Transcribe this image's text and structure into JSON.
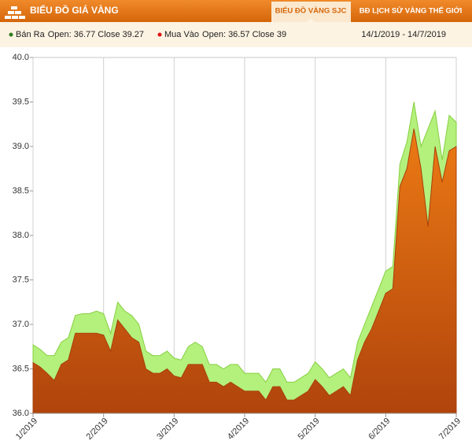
{
  "header": {
    "title": "BIỂU ĐỒ GIÁ VÀNG",
    "tabs": [
      "BIỂU ĐỒ VÀNG SJC",
      "BĐ LỊCH SỬ VÀNG THẾ GIỚI"
    ],
    "date_range": "14/1/2019 - 14/7/2019"
  },
  "chart_data": {
    "type": "area",
    "x": [
      1.0,
      1.1,
      1.2,
      1.3,
      1.4,
      1.5,
      1.6,
      1.7,
      1.8,
      1.9,
      2.0,
      2.1,
      2.2,
      2.3,
      2.4,
      2.5,
      2.6,
      2.7,
      2.8,
      2.9,
      3.0,
      3.1,
      3.2,
      3.3,
      3.4,
      3.5,
      3.6,
      3.7,
      3.8,
      3.9,
      4.0,
      4.1,
      4.2,
      4.3,
      4.4,
      4.5,
      4.6,
      4.7,
      4.8,
      4.9,
      5.0,
      5.1,
      5.2,
      5.3,
      5.4,
      5.5,
      5.6,
      5.7,
      5.8,
      5.9,
      6.0,
      6.1,
      6.2,
      6.3,
      6.4,
      6.5,
      6.6,
      6.7,
      6.8,
      6.9,
      7.0
    ],
    "series": [
      {
        "name": "Bán Ra",
        "summary": "Open: 36.77 Close 39.27",
        "color": "#b3f07c",
        "stroke": "#86d040",
        "dot": "#2e7d1e",
        "values": [
          36.77,
          36.72,
          36.65,
          36.65,
          36.8,
          36.85,
          37.1,
          37.12,
          37.12,
          37.15,
          37.12,
          36.9,
          37.25,
          37.15,
          37.1,
          37.0,
          36.7,
          36.65,
          36.65,
          36.7,
          36.62,
          36.6,
          36.75,
          36.8,
          36.75,
          36.55,
          36.55,
          36.5,
          36.55,
          36.55,
          36.45,
          36.45,
          36.45,
          36.35,
          36.5,
          36.5,
          36.35,
          36.35,
          36.4,
          36.45,
          36.58,
          36.5,
          36.4,
          36.45,
          36.5,
          36.4,
          36.8,
          37.0,
          37.2,
          37.4,
          37.6,
          37.65,
          38.8,
          39.05,
          39.5,
          39.0,
          39.2,
          39.4,
          38.85,
          39.35,
          39.27
        ]
      },
      {
        "name": "Mua Vào",
        "summary": "Open: 36.57 Close 39",
        "color": "#e06a10",
        "stroke": "#a8400c",
        "dot": "#e01010",
        "values": [
          36.57,
          36.52,
          36.45,
          36.37,
          36.55,
          36.6,
          36.9,
          36.9,
          36.9,
          36.9,
          36.88,
          36.7,
          37.05,
          36.95,
          36.85,
          36.8,
          36.5,
          36.45,
          36.45,
          36.5,
          36.42,
          36.4,
          36.55,
          36.55,
          36.55,
          36.35,
          36.35,
          36.3,
          36.35,
          36.3,
          36.25,
          36.25,
          36.25,
          36.15,
          36.3,
          36.3,
          36.15,
          36.15,
          36.2,
          36.25,
          36.38,
          36.3,
          36.2,
          36.25,
          36.3,
          36.2,
          36.6,
          36.8,
          36.95,
          37.15,
          37.35,
          37.4,
          38.55,
          38.75,
          39.2,
          38.75,
          38.1,
          39.0,
          38.6,
          38.95,
          39.0
        ]
      }
    ],
    "xlim": [
      1,
      7
    ],
    "xticks": [
      {
        "value": 1,
        "label": "1/2019"
      },
      {
        "value": 2,
        "label": "2/2019"
      },
      {
        "value": 3,
        "label": "3/2019"
      },
      {
        "value": 4,
        "label": "4/2019"
      },
      {
        "value": 5,
        "label": "5/2019"
      },
      {
        "value": 6,
        "label": "6/2019"
      },
      {
        "value": 7,
        "label": "7/2019"
      }
    ],
    "ylim": [
      36,
      40
    ],
    "yticks": [
      {
        "value": 36,
        "label": "36.0"
      },
      {
        "value": 36.5,
        "label": "36.5"
      },
      {
        "value": 37,
        "label": "37.0"
      },
      {
        "value": 37.5,
        "label": "37.5"
      },
      {
        "value": 38,
        "label": "38.0"
      },
      {
        "value": 38.5,
        "label": "38.5"
      },
      {
        "value": 39,
        "label": "39.0"
      },
      {
        "value": 39.5,
        "label": "39.5"
      },
      {
        "value": 40,
        "label": "40.0"
      }
    ],
    "grid": "x"
  }
}
